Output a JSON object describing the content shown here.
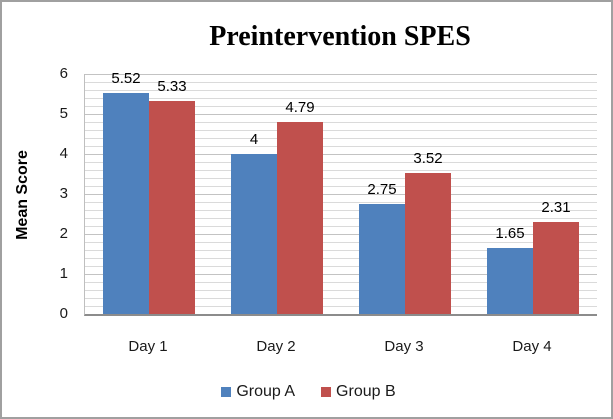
{
  "figure": {
    "title": "Preintervention SPES"
  },
  "chart_data": {
    "type": "bar",
    "title": "Preintervention SPES",
    "categories": [
      "Day 1",
      "Day 2",
      "Day 3",
      "Day 4"
    ],
    "series": [
      {
        "name": "Group A",
        "color": "#4F81BD",
        "values": [
          5.52,
          4,
          2.75,
          1.65
        ],
        "labels": [
          "5.52",
          "4",
          "2.75",
          "1.65"
        ]
      },
      {
        "name": "Group B",
        "color": "#C0504D",
        "values": [
          5.33,
          4.79,
          3.52,
          2.31
        ],
        "labels": [
          "5.33",
          "4.79",
          "3.52",
          "2.31"
        ]
      }
    ],
    "xlabel": "",
    "ylabel": "Mean Score",
    "ylim": [
      0,
      6
    ],
    "yticks": [
      0,
      1,
      2,
      3,
      4,
      5,
      6
    ],
    "minor_grid_step": 0.2,
    "grid": true,
    "legend_position": "bottom",
    "colors": {
      "minor_gridline": "#DADADA",
      "major_gridline": "#C3C3C3",
      "axis_line": "#BFBFBF",
      "baseline": "#8C8C8C",
      "figure_border": "#A0A0A0",
      "text": "#000000"
    }
  }
}
